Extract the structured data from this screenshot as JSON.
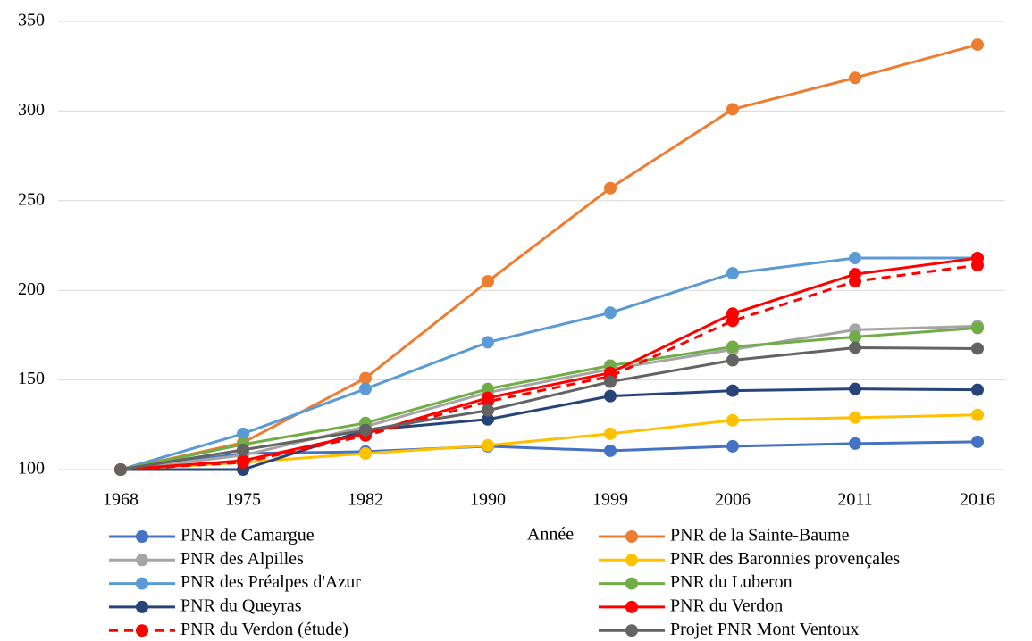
{
  "chart_data": {
    "type": "line",
    "x_label": "Année",
    "categories": [
      "1968",
      "1975",
      "1982",
      "1990",
      "1999",
      "2006",
      "2011",
      "2016"
    ],
    "ylim": [
      100,
      350
    ],
    "yticks": [
      100,
      150,
      200,
      250,
      300,
      350
    ],
    "grid": true,
    "series": [
      {
        "name": "PNR de Camargue",
        "color": "#4472c4",
        "values": [
          100,
          109,
          110,
          113,
          110.5,
          113,
          114.5,
          115.5
        ]
      },
      {
        "name": "PNR de la Sainte-Baume",
        "color": "#ed7d31",
        "values": [
          100,
          115,
          151,
          205,
          257,
          301,
          318.5,
          337
        ]
      },
      {
        "name": "PNR des Alpilles",
        "color": "#a5a5a5",
        "values": [
          100,
          108,
          124,
          143,
          156,
          167,
          178,
          180
        ]
      },
      {
        "name": "PNR des Baronnies provençales",
        "color": "#ffc000",
        "values": [
          100,
          104,
          109,
          113.5,
          120,
          127.5,
          129,
          130.5
        ]
      },
      {
        "name": "PNR des Préalpes d'Azur",
        "color": "#5b9bd5",
        "values": [
          100,
          120,
          145,
          171,
          187.5,
          209.5,
          218,
          218
        ]
      },
      {
        "name": "PNR du Luberon",
        "color": "#70ad47",
        "values": [
          100,
          114,
          126,
          145,
          158,
          168.5,
          174,
          179
        ]
      },
      {
        "name": "PNR du Queyras",
        "color": "#264478",
        "values": [
          100,
          100,
          122,
          128,
          141,
          144,
          145,
          144.5
        ]
      },
      {
        "name": "PNR du Verdon",
        "color": "#ff0000",
        "values": [
          100,
          105,
          120,
          140,
          154,
          187,
          209,
          218
        ]
      },
      {
        "name": "PNR du Verdon (étude)",
        "color": "#ff0000",
        "line_style": "dashed",
        "values": [
          100,
          104,
          119,
          138,
          152,
          183,
          205,
          214
        ]
      },
      {
        "name": "Projet PNR Mont Ventoux",
        "color": "#636363",
        "values": [
          100,
          111,
          122,
          133,
          149,
          161,
          168,
          167.5
        ]
      }
    ]
  }
}
